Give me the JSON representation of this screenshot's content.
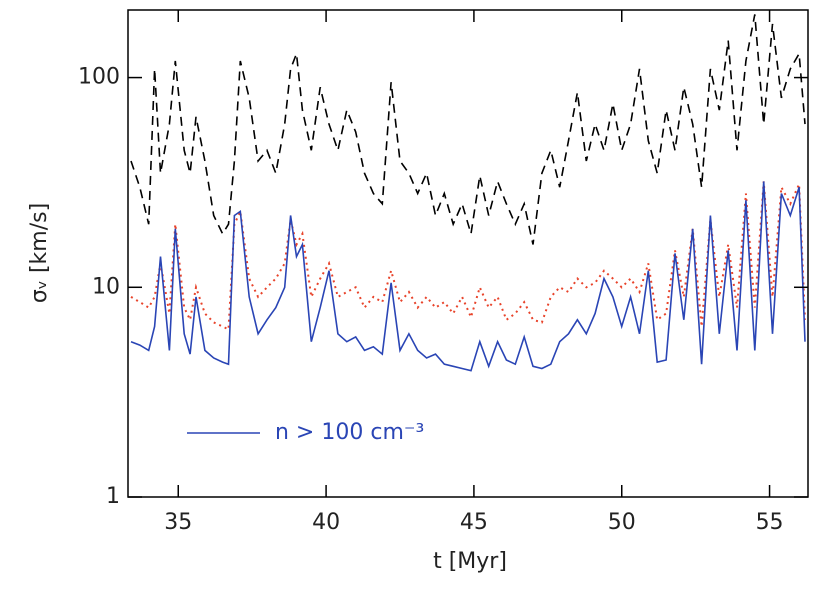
{
  "chart_data": {
    "type": "line",
    "xlabel": "t [Myr]",
    "ylabel": "σᵥ [km/s]",
    "log_y": true,
    "xlim": [
      33.3,
      56.3
    ],
    "ylim": [
      1,
      210
    ],
    "xticks": [
      35,
      40,
      45,
      50,
      55
    ],
    "yticks": [
      1,
      10,
      100
    ],
    "legend": "lower left",
    "x": [
      33.4,
      33.7,
      34.0,
      34.2,
      34.4,
      34.7,
      34.9,
      35.2,
      35.4,
      35.6,
      35.9,
      36.2,
      36.5,
      36.7,
      36.9,
      37.1,
      37.4,
      37.7,
      38.0,
      38.3,
      38.6,
      38.8,
      39.0,
      39.2,
      39.5,
      39.8,
      40.1,
      40.4,
      40.7,
      41.0,
      41.3,
      41.6,
      41.9,
      42.2,
      42.5,
      42.8,
      43.1,
      43.4,
      43.7,
      44.0,
      44.3,
      44.6,
      44.9,
      45.2,
      45.5,
      45.8,
      46.1,
      46.4,
      46.7,
      47.0,
      47.3,
      47.6,
      47.9,
      48.2,
      48.5,
      48.8,
      49.1,
      49.4,
      49.7,
      50.0,
      50.3,
      50.6,
      50.9,
      51.2,
      51.5,
      51.8,
      52.1,
      52.4,
      52.7,
      53.0,
      53.3,
      53.6,
      53.9,
      54.2,
      54.5,
      54.8,
      55.1,
      55.4,
      55.7,
      56.0,
      56.2
    ],
    "series": [
      {
        "color": "#000000",
        "dash": "dashed",
        "values": [
          40,
          30,
          20,
          110,
          35,
          60,
          120,
          45,
          35,
          65,
          40,
          22,
          18,
          20,
          40,
          120,
          80,
          40,
          45,
          35,
          60,
          110,
          130,
          70,
          45,
          90,
          60,
          45,
          70,
          55,
          35,
          28,
          25,
          95,
          40,
          35,
          28,
          35,
          22,
          28,
          20,
          25,
          18,
          34,
          22,
          32,
          25,
          20,
          25,
          16,
          35,
          45,
          30,
          50,
          85,
          40,
          60,
          45,
          75,
          45,
          60,
          110,
          50,
          35,
          70,
          45,
          90,
          60,
          30,
          110,
          70,
          150,
          45,
          120,
          200,
          60,
          180,
          80,
          110,
          130,
          60
        ]
      },
      {
        "color": "#e8432a",
        "dash": "dotted",
        "values": [
          9,
          8.5,
          8,
          9,
          13,
          7.5,
          20,
          8,
          7,
          10,
          7.5,
          6.8,
          6.5,
          6.3,
          20,
          23,
          11,
          9,
          10,
          11,
          13,
          21,
          16,
          18,
          9,
          11,
          13,
          9,
          9.5,
          10,
          8,
          9,
          8.5,
          12,
          8.5,
          9.5,
          8,
          9,
          8,
          8.5,
          7.5,
          9,
          7.2,
          10,
          8,
          9,
          7,
          7.5,
          8.5,
          7,
          6.8,
          9,
          10,
          9.5,
          11,
          10,
          10.5,
          12,
          11,
          10,
          11,
          9.5,
          13,
          7,
          7.5,
          15,
          9,
          19,
          6.5,
          21,
          9,
          16,
          8,
          28,
          8,
          32,
          9,
          30,
          25,
          31,
          7
        ]
      },
      {
        "name": "n > 100 cm⁻³",
        "color": "#2a45b5",
        "dash": "solid",
        "values": [
          5.5,
          5.3,
          5,
          6.5,
          14,
          5,
          19,
          6,
          4.8,
          9,
          5,
          4.6,
          4.4,
          4.3,
          22,
          23,
          9,
          6,
          7,
          8,
          10,
          22,
          14,
          16,
          5.5,
          8,
          12,
          6,
          5.5,
          5.8,
          5,
          5.2,
          4.8,
          10.5,
          5,
          6,
          5,
          4.6,
          4.8,
          4.3,
          4.2,
          4.1,
          4,
          5.5,
          4.2,
          5.5,
          4.5,
          4.3,
          5.8,
          4.2,
          4.1,
          4.3,
          5.5,
          6,
          7,
          6,
          7.5,
          11,
          9,
          6.5,
          9,
          6,
          12,
          4.4,
          4.5,
          14.5,
          7,
          19,
          4.3,
          22,
          6,
          15,
          5,
          26,
          5,
          32,
          6,
          28,
          22,
          30,
          5.5
        ]
      }
    ]
  }
}
